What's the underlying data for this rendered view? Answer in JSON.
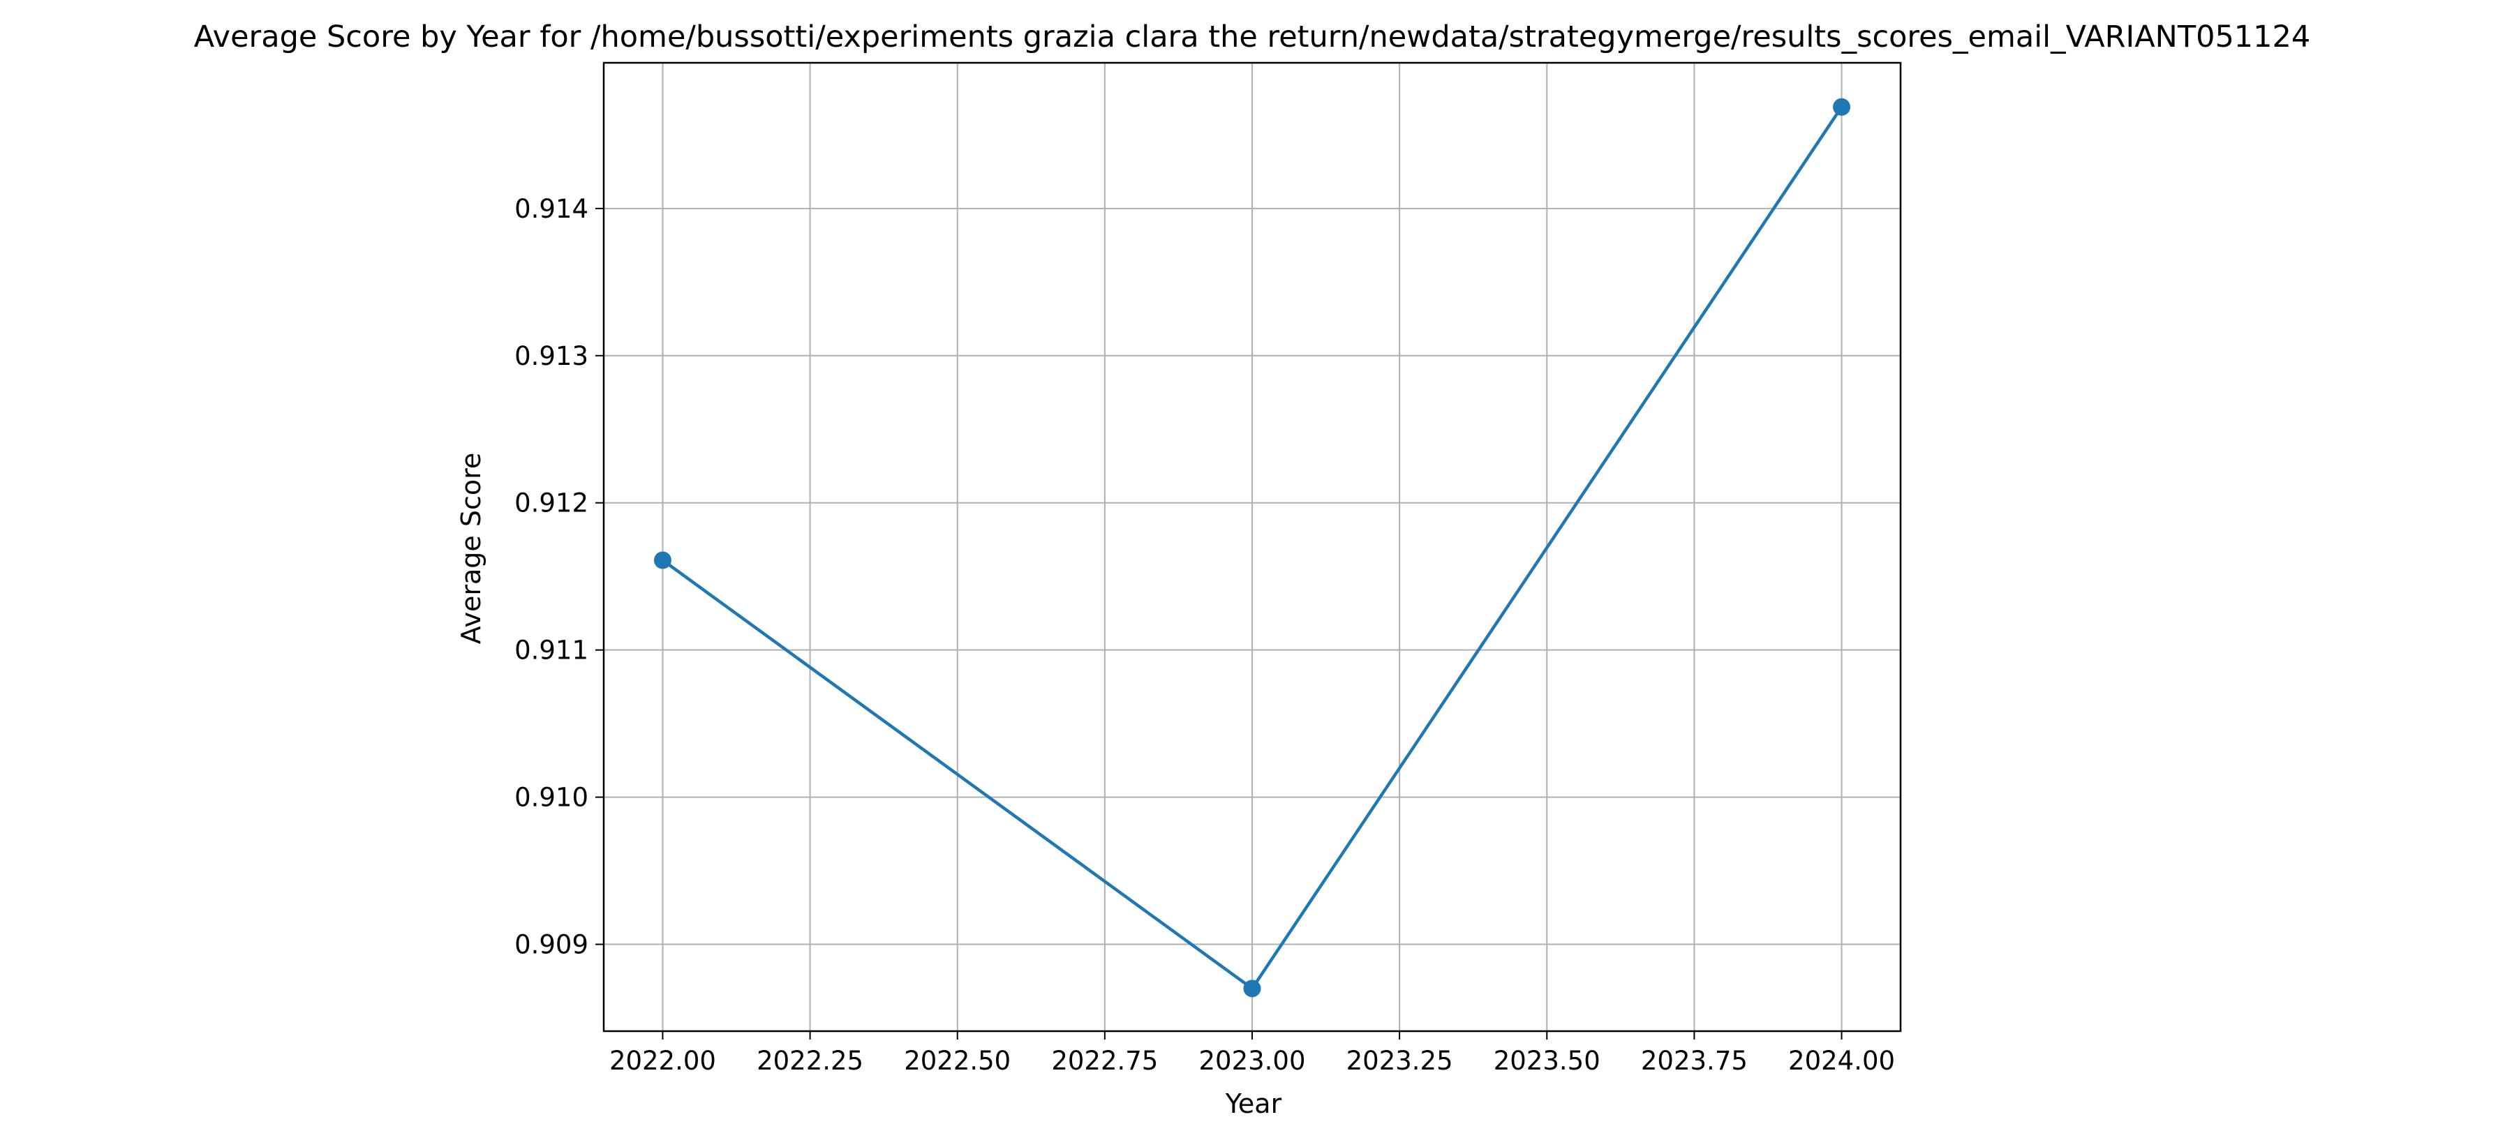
{
  "chart_data": {
    "type": "line",
    "title": "Average Score by Year for /home/bussotti/experiments grazia clara the return/newdata/strategymerge/results_scores_email_VARIANT051124",
    "xlabel": "Year",
    "ylabel": "Average Score",
    "xlim": [
      2021.9,
      2024.1
    ],
    "ylim": [
      0.90841,
      0.91499
    ],
    "grid": true,
    "legend": "none",
    "line_color": "#1f77b4",
    "x_ticks": [
      2022.0,
      2022.25,
      2022.5,
      2022.75,
      2023.0,
      2023.25,
      2023.5,
      2023.75,
      2024.0
    ],
    "x_tick_labels": [
      "2022.00",
      "2022.25",
      "2022.50",
      "2022.75",
      "2023.00",
      "2023.25",
      "2023.50",
      "2023.75",
      "2024.00"
    ],
    "y_ticks": [
      0.909,
      0.91,
      0.911,
      0.912,
      0.913,
      0.914
    ],
    "y_tick_labels": [
      "0.909",
      "0.910",
      "0.911",
      "0.912",
      "0.913",
      "0.914"
    ],
    "series": [
      {
        "x": [
          2022,
          2023,
          2024
        ],
        "y": [
          0.91161,
          0.9087,
          0.91469
        ]
      }
    ]
  }
}
